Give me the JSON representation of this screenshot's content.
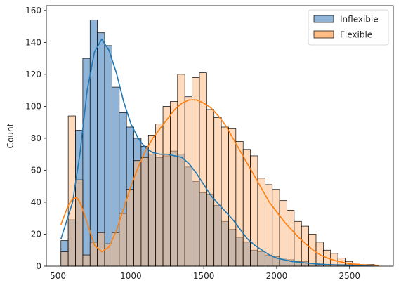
{
  "chart_data": {
    "type": "histogram",
    "title": "",
    "xlabel": "",
    "ylabel": "Count",
    "xlim": [
      420,
      2800
    ],
    "ylim": [
      0,
      163
    ],
    "xticks": [
      500,
      1000,
      1500,
      2000,
      2500
    ],
    "yticks": [
      0,
      20,
      40,
      60,
      80,
      100,
      120,
      140,
      160
    ],
    "grid": false,
    "legend_position": "top-right",
    "bin_start": 520,
    "bin_width": 50,
    "series": [
      {
        "name": "Inflexible",
        "color": "#1f77b4",
        "fill": "#8fb4d7",
        "counts": [
          16,
          29,
          85,
          130,
          154,
          146,
          138,
          112,
          96,
          87,
          80,
          75,
          70,
          68,
          69,
          72,
          70,
          62,
          53,
          46,
          45,
          38,
          28,
          23,
          18,
          15,
          10,
          9,
          7,
          6,
          5,
          4,
          3,
          3,
          2,
          2,
          1,
          1,
          1,
          1,
          0,
          0,
          1
        ]
      },
      {
        "name": "Flexible",
        "color": "#ff7f0e",
        "fill": "#ffbc85",
        "counts": [
          9,
          94,
          54,
          7,
          15,
          21,
          14,
          21,
          33,
          48,
          66,
          68,
          82,
          89,
          100,
          103,
          120,
          106,
          118,
          121,
          98,
          93,
          87,
          86,
          78,
          73,
          69,
          55,
          51,
          48,
          41,
          35,
          28,
          25,
          20,
          15,
          10,
          8,
          5,
          3,
          2,
          1,
          1
        ]
      }
    ],
    "kde": [
      {
        "name": "Inflexible",
        "x": [
          520,
          600,
          650,
          700,
          750,
          800,
          850,
          900,
          950,
          1000,
          1050,
          1100,
          1150,
          1200,
          1250,
          1300,
          1350,
          1400,
          1450,
          1500,
          1550,
          1600,
          1650,
          1700,
          1750,
          1800,
          1850,
          1900,
          1950,
          2000,
          2100,
          2200,
          2300,
          2400,
          2500,
          2600,
          2700
        ],
        "y": [
          17,
          40,
          70,
          110,
          134,
          142,
          135,
          121,
          103,
          89,
          80,
          74,
          71,
          70,
          70,
          69,
          68,
          64,
          58,
          51,
          44,
          39,
          34,
          29,
          23,
          17,
          13,
          10,
          7,
          5,
          3,
          2,
          1.2,
          0.8,
          0.5,
          0.3,
          0.2
        ]
      },
      {
        "name": "Flexible",
        "x": [
          520,
          570,
          600,
          630,
          660,
          700,
          750,
          800,
          850,
          900,
          950,
          1000,
          1050,
          1100,
          1150,
          1200,
          1250,
          1300,
          1350,
          1400,
          1450,
          1500,
          1550,
          1600,
          1650,
          1700,
          1750,
          1800,
          1850,
          1900,
          1950,
          2000,
          2050,
          2100,
          2150,
          2200,
          2250,
          2300,
          2350,
          2400,
          2450,
          2500,
          2600,
          2700
        ],
        "y": [
          26,
          38,
          42,
          43,
          38,
          27,
          13,
          9,
          12,
          22,
          36,
          50,
          62,
          72,
          80,
          86,
          92,
          98,
          102,
          104,
          104,
          102,
          99,
          94,
          88,
          80,
          72,
          64,
          56,
          48,
          40,
          34,
          28,
          23,
          18,
          14,
          10,
          7,
          5,
          3.5,
          2.5,
          1.5,
          0.8,
          0.5
        ]
      }
    ]
  }
}
